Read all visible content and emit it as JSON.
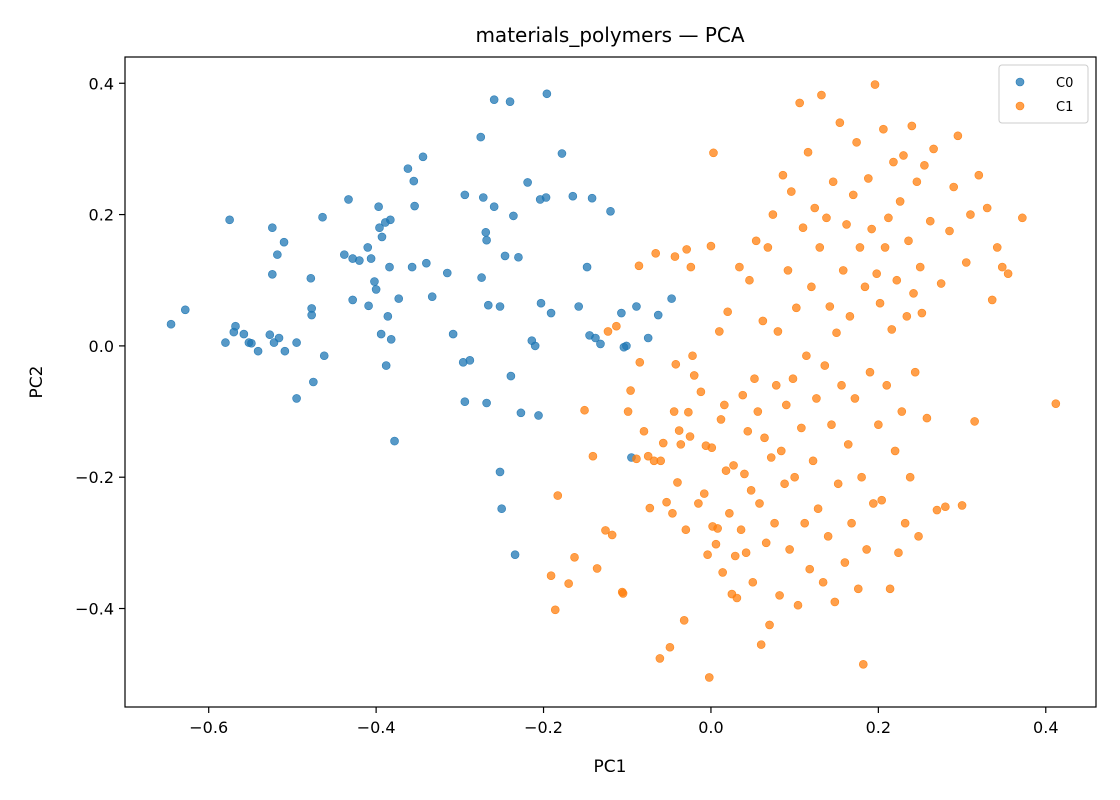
{
  "chart_data": {
    "type": "scatter",
    "title": "materials_polymers — PCA",
    "xlabel": "PC1",
    "ylabel": "PC2",
    "xlim": [
      -0.7,
      0.46
    ],
    "ylim": [
      -0.55,
      0.44
    ],
    "xticks": [
      -0.6,
      -0.4,
      -0.2,
      0.0,
      0.2,
      0.4
    ],
    "xtick_labels": [
      "−0.6",
      "−0.4",
      "−0.2",
      "0.0",
      "0.2",
      "0.4"
    ],
    "yticks": [
      -0.4,
      -0.2,
      0.0,
      0.2,
      0.4
    ],
    "ytick_labels": [
      "−0.4",
      "−0.2",
      "0.0",
      "0.2",
      "0.4"
    ],
    "grid": false,
    "legend_position": "top-right",
    "series": [
      {
        "name": "C0",
        "color": "#1f77b4",
        "points": [
          [
            -0.645,
            0.033
          ],
          [
            -0.628,
            0.055
          ],
          [
            -0.58,
            0.005
          ],
          [
            -0.575,
            0.192
          ],
          [
            -0.57,
            0.021
          ],
          [
            -0.568,
            0.03
          ],
          [
            -0.558,
            0.018
          ],
          [
            -0.552,
            0.005
          ],
          [
            -0.549,
            0.004
          ],
          [
            -0.541,
            -0.008
          ],
          [
            -0.527,
            0.017
          ],
          [
            -0.524,
            0.109
          ],
          [
            -0.524,
            0.18
          ],
          [
            -0.522,
            0.005
          ],
          [
            -0.518,
            0.139
          ],
          [
            -0.516,
            0.012
          ],
          [
            -0.51,
            0.158
          ],
          [
            -0.509,
            -0.008
          ],
          [
            -0.495,
            0.005
          ],
          [
            -0.495,
            -0.08
          ],
          [
            -0.478,
            0.103
          ],
          [
            -0.477,
            0.047
          ],
          [
            -0.477,
            0.057
          ],
          [
            -0.475,
            -0.055
          ],
          [
            -0.464,
            0.196
          ],
          [
            -0.462,
            -0.015
          ],
          [
            -0.438,
            0.139
          ],
          [
            -0.433,
            0.223
          ],
          [
            -0.428,
            0.133
          ],
          [
            -0.428,
            0.07
          ],
          [
            -0.42,
            0.13
          ],
          [
            -0.41,
            0.15
          ],
          [
            -0.409,
            0.061
          ],
          [
            -0.406,
            0.133
          ],
          [
            -0.402,
            0.098
          ],
          [
            -0.4,
            0.086
          ],
          [
            -0.397,
            0.212
          ],
          [
            -0.396,
            0.18
          ],
          [
            -0.394,
            0.018
          ],
          [
            -0.393,
            0.166
          ],
          [
            -0.389,
            0.188
          ],
          [
            -0.388,
            -0.03
          ],
          [
            -0.386,
            0.045
          ],
          [
            -0.384,
            0.12
          ],
          [
            -0.383,
            0.192
          ],
          [
            -0.382,
            0.01
          ],
          [
            -0.378,
            -0.145
          ],
          [
            -0.373,
            0.072
          ],
          [
            -0.362,
            0.27
          ],
          [
            -0.357,
            0.12
          ],
          [
            -0.355,
            0.251
          ],
          [
            -0.354,
            0.213
          ],
          [
            -0.344,
            0.288
          ],
          [
            -0.34,
            0.126
          ],
          [
            -0.333,
            0.075
          ],
          [
            -0.315,
            0.111
          ],
          [
            -0.308,
            0.018
          ],
          [
            -0.296,
            -0.025
          ],
          [
            -0.294,
            0.23
          ],
          [
            -0.294,
            -0.085
          ],
          [
            -0.288,
            -0.022
          ],
          [
            -0.275,
            0.318
          ],
          [
            -0.274,
            0.104
          ],
          [
            -0.272,
            0.226
          ],
          [
            -0.269,
            0.173
          ],
          [
            -0.268,
            0.161
          ],
          [
            -0.268,
            -0.087
          ],
          [
            -0.266,
            0.062
          ],
          [
            -0.259,
            0.375
          ],
          [
            -0.259,
            0.212
          ],
          [
            -0.252,
            0.06
          ],
          [
            -0.252,
            -0.192
          ],
          [
            -0.25,
            -0.248
          ],
          [
            -0.246,
            0.137
          ],
          [
            -0.24,
            0.372
          ],
          [
            -0.239,
            -0.046
          ],
          [
            -0.236,
            0.198
          ],
          [
            -0.234,
            -0.318
          ],
          [
            -0.23,
            0.135
          ],
          [
            -0.227,
            -0.102
          ],
          [
            -0.219,
            0.249
          ],
          [
            -0.214,
            0.008
          ],
          [
            -0.21,
            0.0
          ],
          [
            -0.206,
            -0.106
          ],
          [
            -0.204,
            0.223
          ],
          [
            -0.203,
            0.065
          ],
          [
            -0.197,
            0.226
          ],
          [
            -0.196,
            0.384
          ],
          [
            -0.191,
            0.05
          ],
          [
            -0.178,
            0.293
          ],
          [
            -0.165,
            0.228
          ],
          [
            -0.158,
            0.06
          ],
          [
            -0.148,
            0.12
          ],
          [
            -0.145,
            0.016
          ],
          [
            -0.142,
            0.225
          ],
          [
            -0.138,
            0.012
          ],
          [
            -0.132,
            0.003
          ],
          [
            -0.12,
            0.205
          ],
          [
            -0.107,
            0.05
          ],
          [
            -0.104,
            -0.002
          ],
          [
            -0.101,
            0.0
          ],
          [
            -0.095,
            -0.17
          ],
          [
            -0.089,
            0.06
          ],
          [
            -0.075,
            0.012
          ],
          [
            -0.063,
            0.047
          ],
          [
            -0.047,
            0.072
          ]
        ]
      },
      {
        "name": "C1",
        "color": "#ff7f0e",
        "points": [
          [
            -0.191,
            -0.35
          ],
          [
            -0.186,
            -0.402
          ],
          [
            -0.183,
            -0.228
          ],
          [
            -0.17,
            -0.362
          ],
          [
            -0.163,
            -0.322
          ],
          [
            -0.151,
            -0.098
          ],
          [
            -0.141,
            -0.168
          ],
          [
            -0.136,
            -0.339
          ],
          [
            -0.126,
            -0.281
          ],
          [
            -0.123,
            0.022
          ],
          [
            -0.118,
            -0.288
          ],
          [
            -0.113,
            0.03
          ],
          [
            -0.106,
            -0.375
          ],
          [
            -0.105,
            -0.377
          ],
          [
            -0.099,
            -0.1
          ],
          [
            -0.096,
            -0.068
          ],
          [
            -0.089,
            -0.172
          ],
          [
            -0.086,
            0.122
          ],
          [
            -0.085,
            -0.025
          ],
          [
            -0.08,
            -0.13
          ],
          [
            -0.075,
            -0.168
          ],
          [
            -0.073,
            -0.247
          ],
          [
            -0.068,
            -0.175
          ],
          [
            -0.066,
            0.141
          ],
          [
            -0.061,
            -0.476
          ],
          [
            -0.06,
            -0.175
          ],
          [
            -0.057,
            -0.148
          ],
          [
            -0.053,
            -0.238
          ],
          [
            -0.049,
            -0.459
          ],
          [
            -0.046,
            -0.255
          ],
          [
            -0.044,
            -0.1
          ],
          [
            -0.043,
            0.136
          ],
          [
            -0.042,
            -0.028
          ],
          [
            -0.04,
            -0.208
          ],
          [
            -0.038,
            -0.129
          ],
          [
            -0.036,
            -0.15
          ],
          [
            -0.032,
            -0.418
          ],
          [
            -0.03,
            -0.28
          ],
          [
            -0.029,
            0.147
          ],
          [
            -0.027,
            -0.101
          ],
          [
            -0.025,
            -0.138
          ],
          [
            -0.024,
            0.12
          ],
          [
            -0.022,
            -0.015
          ],
          [
            -0.02,
            -0.045
          ],
          [
            -0.015,
            -0.24
          ],
          [
            -0.012,
            -0.07
          ],
          [
            -0.008,
            -0.225
          ],
          [
            -0.006,
            -0.152
          ],
          [
            -0.004,
            -0.318
          ],
          [
            -0.002,
            -0.505
          ],
          [
            0.0,
            0.152
          ],
          [
            0.001,
            -0.155
          ],
          [
            0.002,
            -0.275
          ],
          [
            0.003,
            0.294
          ],
          [
            0.006,
            -0.302
          ],
          [
            0.008,
            -0.278
          ],
          [
            0.01,
            0.022
          ],
          [
            0.012,
            -0.112
          ],
          [
            0.014,
            -0.345
          ],
          [
            0.016,
            -0.09
          ],
          [
            0.018,
            -0.19
          ],
          [
            0.02,
            0.052
          ],
          [
            0.022,
            -0.255
          ],
          [
            0.025,
            -0.378
          ],
          [
            0.027,
            -0.182
          ],
          [
            0.029,
            -0.32
          ],
          [
            0.031,
            -0.384
          ],
          [
            0.034,
            0.12
          ],
          [
            0.036,
            -0.28
          ],
          [
            0.038,
            -0.075
          ],
          [
            0.04,
            -0.195
          ],
          [
            0.042,
            -0.315
          ],
          [
            0.044,
            -0.13
          ],
          [
            0.046,
            0.1
          ],
          [
            0.048,
            -0.22
          ],
          [
            0.05,
            -0.36
          ],
          [
            0.052,
            -0.05
          ],
          [
            0.054,
            0.16
          ],
          [
            0.056,
            -0.1
          ],
          [
            0.058,
            -0.24
          ],
          [
            0.06,
            -0.455
          ],
          [
            0.062,
            0.038
          ],
          [
            0.064,
            -0.14
          ],
          [
            0.066,
            -0.3
          ],
          [
            0.068,
            0.15
          ],
          [
            0.07,
            -0.425
          ],
          [
            0.072,
            -0.17
          ],
          [
            0.074,
            0.2
          ],
          [
            0.076,
            -0.27
          ],
          [
            0.078,
            -0.06
          ],
          [
            0.08,
            0.022
          ],
          [
            0.082,
            -0.38
          ],
          [
            0.084,
            -0.16
          ],
          [
            0.086,
            0.26
          ],
          [
            0.088,
            -0.21
          ],
          [
            0.09,
            -0.09
          ],
          [
            0.092,
            0.115
          ],
          [
            0.094,
            -0.31
          ],
          [
            0.096,
            0.235
          ],
          [
            0.098,
            -0.05
          ],
          [
            0.1,
            -0.2
          ],
          [
            0.102,
            0.058
          ],
          [
            0.104,
            -0.395
          ],
          [
            0.106,
            0.37
          ],
          [
            0.108,
            -0.125
          ],
          [
            0.11,
            0.18
          ],
          [
            0.112,
            -0.27
          ],
          [
            0.114,
            -0.015
          ],
          [
            0.116,
            0.295
          ],
          [
            0.118,
            -0.34
          ],
          [
            0.12,
            0.09
          ],
          [
            0.122,
            -0.175
          ],
          [
            0.124,
            0.21
          ],
          [
            0.126,
            -0.08
          ],
          [
            0.128,
            -0.248
          ],
          [
            0.13,
            0.15
          ],
          [
            0.132,
            0.382
          ],
          [
            0.134,
            -0.36
          ],
          [
            0.136,
            -0.03
          ],
          [
            0.138,
            0.195
          ],
          [
            0.14,
            -0.29
          ],
          [
            0.142,
            0.06
          ],
          [
            0.144,
            -0.12
          ],
          [
            0.146,
            0.25
          ],
          [
            0.148,
            -0.39
          ],
          [
            0.15,
            0.02
          ],
          [
            0.152,
            -0.21
          ],
          [
            0.154,
            0.34
          ],
          [
            0.156,
            -0.06
          ],
          [
            0.158,
            0.115
          ],
          [
            0.16,
            -0.33
          ],
          [
            0.162,
            0.185
          ],
          [
            0.164,
            -0.15
          ],
          [
            0.166,
            0.045
          ],
          [
            0.168,
            -0.27
          ],
          [
            0.17,
            0.23
          ],
          [
            0.172,
            -0.08
          ],
          [
            0.174,
            0.31
          ],
          [
            0.176,
            -0.37
          ],
          [
            0.178,
            0.15
          ],
          [
            0.18,
            -0.2
          ],
          [
            0.182,
            -0.485
          ],
          [
            0.184,
            0.09
          ],
          [
            0.186,
            -0.31
          ],
          [
            0.188,
            0.255
          ],
          [
            0.19,
            -0.04
          ],
          [
            0.192,
            0.178
          ],
          [
            0.194,
            -0.24
          ],
          [
            0.196,
            0.398
          ],
          [
            0.198,
            0.11
          ],
          [
            0.2,
            -0.12
          ],
          [
            0.202,
            0.065
          ],
          [
            0.204,
            -0.235
          ],
          [
            0.206,
            0.33
          ],
          [
            0.208,
            0.15
          ],
          [
            0.21,
            -0.06
          ],
          [
            0.212,
            0.195
          ],
          [
            0.214,
            -0.37
          ],
          [
            0.216,
            0.025
          ],
          [
            0.218,
            0.28
          ],
          [
            0.22,
            -0.16
          ],
          [
            0.222,
            0.1
          ],
          [
            0.224,
            -0.315
          ],
          [
            0.226,
            0.22
          ],
          [
            0.228,
            -0.1
          ],
          [
            0.23,
            0.29
          ],
          [
            0.232,
            -0.27
          ],
          [
            0.234,
            0.045
          ],
          [
            0.236,
            0.16
          ],
          [
            0.238,
            -0.2
          ],
          [
            0.24,
            0.335
          ],
          [
            0.242,
            0.08
          ],
          [
            0.244,
            -0.04
          ],
          [
            0.246,
            0.25
          ],
          [
            0.248,
            -0.29
          ],
          [
            0.25,
            0.12
          ],
          [
            0.252,
            0.05
          ],
          [
            0.255,
            0.275
          ],
          [
            0.258,
            -0.11
          ],
          [
            0.262,
            0.19
          ],
          [
            0.266,
            0.3
          ],
          [
            0.27,
            -0.25
          ],
          [
            0.275,
            0.095
          ],
          [
            0.28,
            -0.245
          ],
          [
            0.285,
            0.175
          ],
          [
            0.29,
            0.242
          ],
          [
            0.295,
            0.32
          ],
          [
            0.3,
            -0.243
          ],
          [
            0.305,
            0.127
          ],
          [
            0.31,
            0.2
          ],
          [
            0.315,
            -0.115
          ],
          [
            0.32,
            0.26
          ],
          [
            0.33,
            0.21
          ],
          [
            0.336,
            0.07
          ],
          [
            0.342,
            0.15
          ],
          [
            0.348,
            0.12
          ],
          [
            0.355,
            0.11
          ],
          [
            0.372,
            0.195
          ],
          [
            0.412,
            -0.088
          ]
        ]
      }
    ]
  }
}
